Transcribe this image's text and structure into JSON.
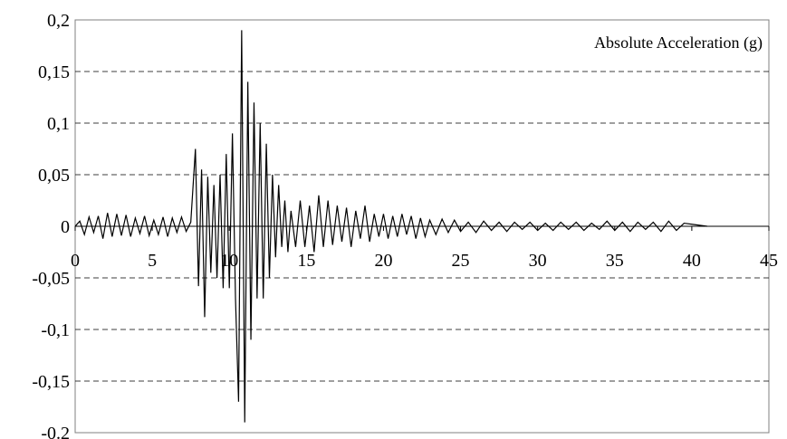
{
  "chart_data": {
    "type": "line",
    "legend_label": "Absolute Acceleration (g)",
    "legend_placement": "top-right",
    "xlim": [
      0,
      45
    ],
    "ylim": [
      -0.2,
      0.2
    ],
    "x_ticks": [
      0,
      5,
      10,
      15,
      20,
      25,
      30,
      35,
      40,
      45
    ],
    "x_tick_labels": [
      "0",
      "5",
      "10",
      "15",
      "20",
      "25",
      "30",
      "35",
      "40",
      "45"
    ],
    "y_ticks": [
      0.2,
      0.15,
      0.1,
      0.05,
      0,
      -0.05,
      -0.1,
      -0.15,
      -0.2
    ],
    "y_tick_labels": [
      "0,2",
      "0,15",
      "0,1",
      "0,05",
      "0",
      "-0,05",
      "-0,1",
      "-0,15",
      "-0.2"
    ],
    "grid": "horizontal dashed",
    "line_color": "#000000",
    "series": [
      {
        "x": [
          0.0,
          0.3,
          0.6,
          0.9,
          1.2,
          1.5,
          1.8,
          2.1,
          2.4,
          2.7,
          3.0,
          3.3,
          3.6,
          3.9,
          4.2,
          4.5,
          4.8,
          5.1,
          5.4,
          5.7,
          6.0,
          6.3,
          6.6,
          6.9,
          7.2,
          7.5,
          7.8,
          8.0,
          8.2,
          8.4,
          8.6,
          8.8,
          9.0,
          9.2,
          9.4,
          9.6,
          9.8,
          10.0,
          10.2,
          10.4,
          10.6,
          10.8,
          11.0,
          11.2,
          11.4,
          11.6,
          11.8,
          12.0,
          12.2,
          12.4,
          12.6,
          12.8,
          13.0,
          13.2,
          13.4,
          13.6,
          13.8,
          14.0,
          14.3,
          14.6,
          14.9,
          15.2,
          15.5,
          15.8,
          16.1,
          16.4,
          16.7,
          17.0,
          17.3,
          17.6,
          17.9,
          18.2,
          18.5,
          18.8,
          19.1,
          19.4,
          19.7,
          20.0,
          20.3,
          20.6,
          20.9,
          21.2,
          21.5,
          21.8,
          22.1,
          22.4,
          22.7,
          23.0,
          23.4,
          23.8,
          24.2,
          24.6,
          25.0,
          25.5,
          26.0,
          26.5,
          27.0,
          27.5,
          28.0,
          28.5,
          29.0,
          29.5,
          30.0,
          30.5,
          31.0,
          31.5,
          32.0,
          32.5,
          33.0,
          33.5,
          34.0,
          34.5,
          35.0,
          35.5,
          36.0,
          36.5,
          37.0,
          37.5,
          38.0,
          38.5,
          39.0,
          39.5,
          40.0,
          40.5,
          41.0
        ],
        "y": [
          0.0,
          0.005,
          -0.008,
          0.009,
          -0.006,
          0.01,
          -0.012,
          0.013,
          -0.01,
          0.012,
          -0.009,
          0.011,
          -0.01,
          0.008,
          -0.007,
          0.01,
          -0.009,
          0.006,
          -0.008,
          0.009,
          -0.01,
          0.008,
          -0.006,
          0.009,
          -0.005,
          0.004,
          0.075,
          -0.058,
          0.055,
          -0.088,
          0.048,
          -0.045,
          0.04,
          -0.05,
          0.05,
          -0.06,
          0.07,
          -0.06,
          0.09,
          -0.07,
          -0.17,
          0.19,
          -0.19,
          0.14,
          -0.11,
          0.12,
          -0.07,
          0.1,
          -0.07,
          0.08,
          -0.05,
          0.05,
          -0.03,
          0.04,
          -0.02,
          0.025,
          -0.025,
          0.015,
          -0.02,
          0.025,
          -0.02,
          0.02,
          -0.025,
          0.03,
          -0.02,
          0.025,
          -0.018,
          0.02,
          -0.015,
          0.018,
          -0.02,
          0.015,
          -0.012,
          0.02,
          -0.015,
          0.012,
          -0.01,
          0.012,
          -0.012,
          0.01,
          -0.01,
          0.012,
          -0.008,
          0.01,
          -0.012,
          0.008,
          -0.01,
          0.006,
          -0.008,
          0.007,
          -0.006,
          0.006,
          -0.005,
          0.004,
          -0.006,
          0.005,
          -0.004,
          0.004,
          -0.005,
          0.004,
          -0.003,
          0.004,
          -0.004,
          0.003,
          -0.004,
          0.004,
          -0.003,
          0.004,
          -0.004,
          0.003,
          -0.003,
          0.005,
          -0.004,
          0.004,
          -0.005,
          0.004,
          -0.003,
          0.004,
          -0.005,
          0.005,
          -0.004,
          0.003,
          0.002,
          0.001,
          0.0
        ]
      }
    ]
  }
}
